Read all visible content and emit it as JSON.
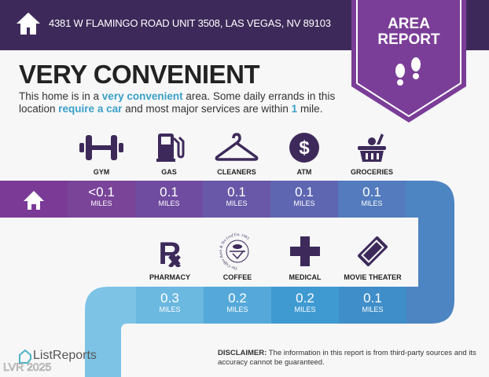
{
  "header": {
    "address": "4381 W FLAMINGO ROAD UNIT 3508, LAS VEGAS, NV 89103",
    "icon": "home-icon"
  },
  "badge": {
    "line1": "AREA",
    "line2": "REPORT",
    "icon": "footprints-icon",
    "color": "#7b3e98"
  },
  "title": "VERY CONVENIENT",
  "description": {
    "p1": "This home is in a ",
    "h1": "very convenient",
    "p2": " area. Some daily errands in this",
    "p3": "location ",
    "h2": "require a car",
    "p4": " and most major services are within ",
    "h3": "1",
    "p5": " mile."
  },
  "row1": [
    {
      "label": "GYM",
      "value": "<0.1",
      "unit": "MILES",
      "icon": "dumbbell-icon"
    },
    {
      "label": "GAS",
      "value": "0.1",
      "unit": "MILES",
      "icon": "gas-pump-icon"
    },
    {
      "label": "CLEANERS",
      "value": "0.1",
      "unit": "MILES",
      "icon": "hanger-icon"
    },
    {
      "label": "ATM",
      "value": "0.1",
      "unit": "MILES",
      "icon": "dollar-icon"
    },
    {
      "label": "GROCERIES",
      "value": "0.1",
      "unit": "MILES",
      "icon": "basket-icon"
    }
  ],
  "row2": [
    {
      "label": "PHARMACY",
      "value": "0.3",
      "unit": "MILES",
      "icon": "rx-icon"
    },
    {
      "label": "COFFEE",
      "value": "0.2",
      "unit": "MILES",
      "icon": "coffee-logo-icon"
    },
    {
      "label": "MEDICAL",
      "value": "0.2",
      "unit": "MILES",
      "icon": "medical-cross-icon"
    },
    {
      "label": "MOVIE THEATER",
      "value": "0.1",
      "unit": "MILES",
      "icon": "ticket-icon"
    }
  ],
  "coffee_logo_text": "The Coffee Bean & Tea Leaf Est. 1963",
  "disclaimer": {
    "bold": "DISCLAIMER:",
    "text": " The information in this report is from third-party sources and its accuracy cannot be guaranteed."
  },
  "logo": "ListReports",
  "watermark": "LVR 2025",
  "colors": {
    "header": "#3d2a5a",
    "icon": "#3d2a5a",
    "highlight": "#3aa0c8"
  }
}
